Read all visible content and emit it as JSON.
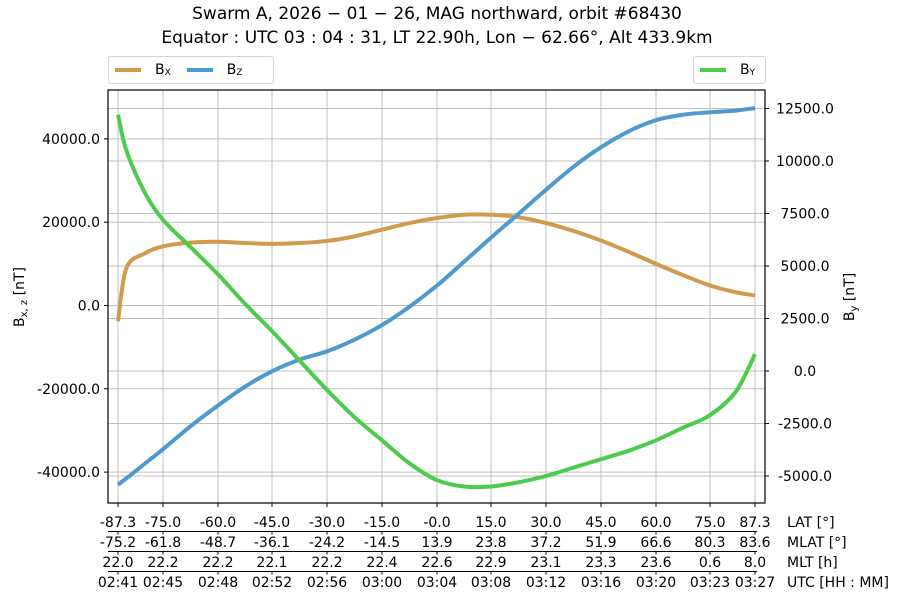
{
  "title": {
    "line1": "Swarm A,  2026 − 01 − 26,  MAG northward,  orbit #68430",
    "line2": "Equator :  UTC 03 : 04 : 31,  LT 22.90h,  Lon  − 62.66°,  Alt 433.9km"
  },
  "legend_left": [
    {
      "label": "B",
      "sub": "X",
      "color": "#d19a4e"
    },
    {
      "label": "B",
      "sub": "Z",
      "color": "#4e9ace"
    }
  ],
  "legend_right": [
    {
      "label": "B",
      "sub": "Y",
      "color": "#4ccc4c"
    }
  ],
  "colors": {
    "bx": "#d19a4e",
    "bz": "#4e9ace",
    "by": "#4ccc4c",
    "grid": "#c0c0c0"
  },
  "chart_data": {
    "type": "line",
    "title": "Swarm A, 2026-01-26, MAG northward, orbit #68430 / Equator: UTC 03:04:31, LT 22.90h, Lon -62.66°, Alt 433.9km",
    "xlabel_rows": [
      {
        "label": "LAT [°]",
        "ticks": [
          "-87.3",
          "-75.0",
          "-60.0",
          "-45.0",
          "-30.0",
          "-15.0",
          "-0.0",
          "15.0",
          "30.0",
          "45.0",
          "60.0",
          "75.0",
          "87.3"
        ]
      },
      {
        "label": "MLAT [°]",
        "ticks": [
          "-75.2",
          "-61.8",
          "-48.7",
          "-36.1",
          "-24.2",
          "-14.5",
          "13.9",
          "23.8",
          "37.2",
          "51.9",
          "66.6",
          "80.3",
          "83.6"
        ]
      },
      {
        "label": "MLT [h]",
        "ticks": [
          "22.0",
          "22.2",
          "22.2",
          "22.1",
          "22.2",
          "22.4",
          "22.6",
          "22.9",
          "23.1",
          "23.3",
          "23.6",
          "0.6",
          "8.0"
        ]
      },
      {
        "label": "UTC [HH : MM]",
        "ticks": [
          "02:41",
          "02:45",
          "02:48",
          "02:52",
          "02:56",
          "03:00",
          "03:04",
          "03:08",
          "03:12",
          "03:16",
          "03:20",
          "03:23",
          "03:27"
        ]
      }
    ],
    "y_left": {
      "label": "B_x,z [nT]",
      "ticks": [
        "-40000.0",
        "-20000.0",
        "0.0",
        "20000.0",
        "40000.0"
      ],
      "ylim": [
        -48000,
        52000
      ]
    },
    "y_right": {
      "label": "B_y [nT]",
      "ticks": [
        "-5000.0",
        "-2500.0",
        "0.0",
        "2500.0",
        "5000.0",
        "7500.0",
        "10000.0",
        "12500.0"
      ],
      "ylim": [
        -6300,
        13300
      ]
    },
    "grid": true,
    "x": [
      -87.3,
      -85,
      -80,
      -75,
      -67.5,
      -60,
      -52.5,
      -45,
      -37.5,
      -30,
      -22.5,
      -15,
      -7.5,
      0,
      7.5,
      15,
      22.5,
      30,
      37.5,
      45,
      52.5,
      60,
      67.5,
      75,
      82,
      87.3
    ],
    "series": [
      {
        "name": "B_X",
        "axis": "left",
        "values": [
          -3800,
          9000,
          12500,
          14200,
          15100,
          15300,
          15000,
          14800,
          15000,
          15500,
          16600,
          18200,
          19800,
          21000,
          21800,
          21800,
          21200,
          19800,
          17900,
          15600,
          12900,
          10000,
          7300,
          4800,
          3200,
          2400
        ]
      },
      {
        "name": "B_Z",
        "axis": "left",
        "values": [
          -43000,
          -41500,
          -38000,
          -34500,
          -29000,
          -24000,
          -19500,
          -15800,
          -13000,
          -11000,
          -8200,
          -4700,
          -300,
          4800,
          10500,
          16300,
          22000,
          27800,
          33300,
          38000,
          41800,
          44500,
          45800,
          46400,
          46800,
          47400
        ]
      },
      {
        "name": "B_Y",
        "axis": "right",
        "values": [
          12200,
          10500,
          8500,
          7200,
          5900,
          4600,
          3200,
          1900,
          500,
          -900,
          -2200,
          -3300,
          -4400,
          -5200,
          -5500,
          -5500,
          -5300,
          -5000,
          -4600,
          -4200,
          -3800,
          -3300,
          -2700,
          -2100,
          -1000,
          800
        ]
      }
    ]
  }
}
